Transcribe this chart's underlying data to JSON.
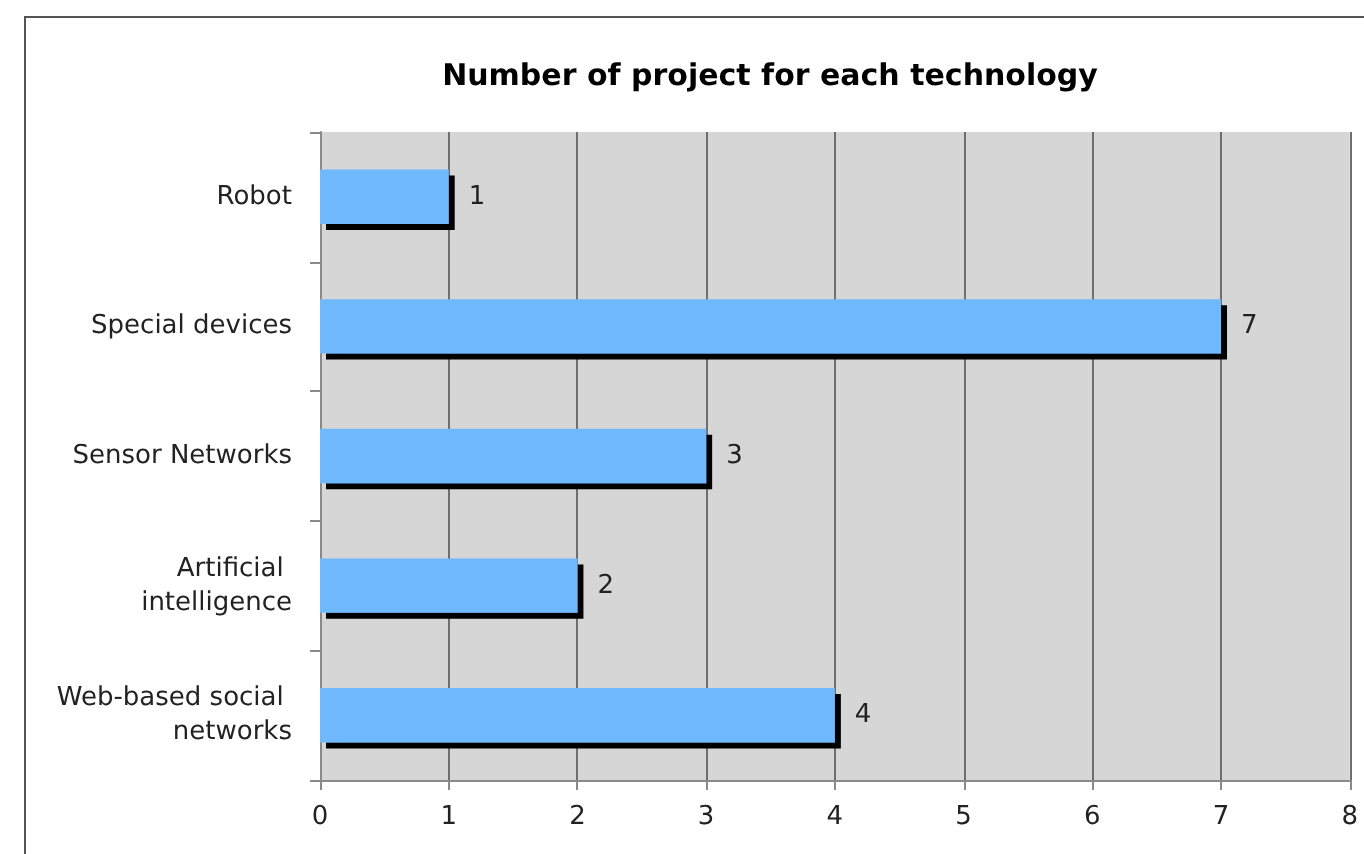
{
  "chart_data": {
    "type": "bar",
    "orientation": "horizontal",
    "title": "Number of project for each technology",
    "categories": [
      "Robot",
      "Special devices",
      "Sensor Networks",
      "Artificial intelligence",
      "Web-based social networks"
    ],
    "values": [
      1,
      7,
      3,
      2,
      4
    ],
    "color": "#70b8fc",
    "xlim": [
      0,
      8
    ],
    "xticks": [
      0,
      1,
      2,
      3,
      4,
      5,
      6,
      7,
      8
    ],
    "grid": "x",
    "data_labels": true
  }
}
